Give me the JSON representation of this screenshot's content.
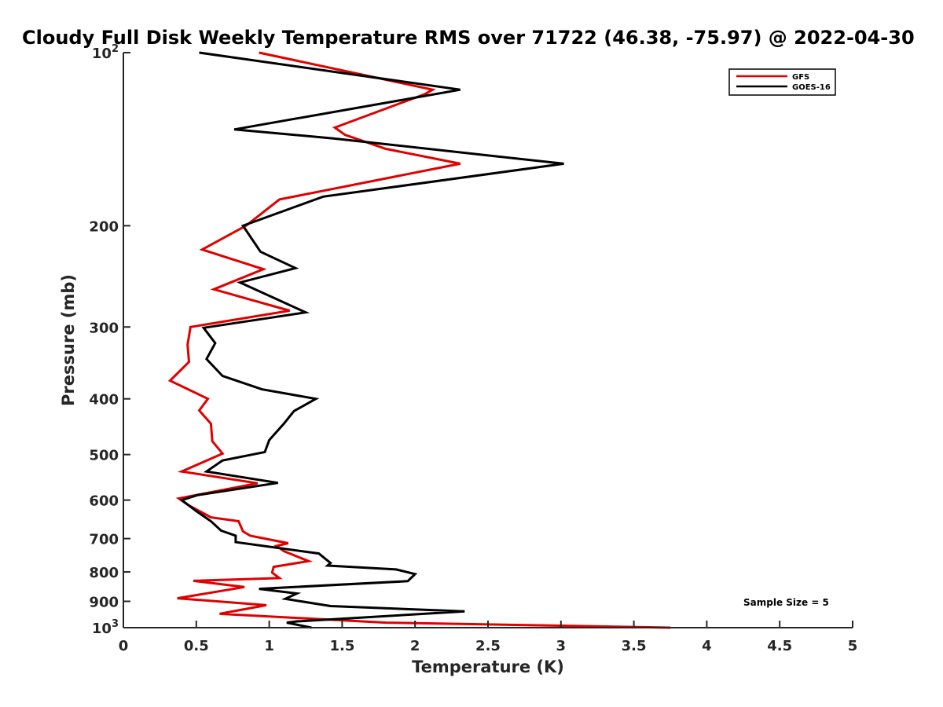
{
  "chart_data": {
    "type": "line",
    "title": "Cloudy Full Disk Weekly Temperature RMS over 71722 (46.38, -75.97) @ 2022-04-30",
    "xlabel": "Temperature (K)",
    "ylabel": "Pressure (mb)",
    "xlim": [
      0,
      5
    ],
    "ylim": [
      100,
      1000
    ],
    "y_scale": "log",
    "y_reversed": true,
    "x_ticks": [
      "0",
      "0.5",
      "1",
      "1.5",
      "2",
      "2.5",
      "3",
      "3.5",
      "4",
      "4.5",
      "5"
    ],
    "y_ticks": [
      {
        "value": 100,
        "base": "10",
        "exp": "2"
      },
      {
        "value": 200,
        "label": "200"
      },
      {
        "value": 300,
        "label": "300"
      },
      {
        "value": 400,
        "label": "400"
      },
      {
        "value": 500,
        "label": "500"
      },
      {
        "value": 600,
        "label": "600"
      },
      {
        "value": 700,
        "label": "700"
      },
      {
        "value": 800,
        "label": "800"
      },
      {
        "value": 900,
        "label": "900"
      },
      {
        "value": 1000,
        "base": "10",
        "exp": "3"
      }
    ],
    "legend": {
      "placement": "top-right"
    },
    "annotation": "Sample Size = 5",
    "series": [
      {
        "name": "GFS",
        "color": "#e00000",
        "points": [
          [
            0.93,
            100
          ],
          [
            2.12,
            116
          ],
          [
            2.07,
            118
          ],
          [
            1.45,
            135
          ],
          [
            1.52,
            139
          ],
          [
            1.8,
            147
          ],
          [
            2.31,
            156
          ],
          [
            1.07,
            180
          ],
          [
            0.84,
            200
          ],
          [
            0.54,
            220
          ],
          [
            0.96,
            238
          ],
          [
            0.62,
            258
          ],
          [
            1.14,
            281
          ],
          [
            0.46,
            300
          ],
          [
            0.44,
            322
          ],
          [
            0.45,
            345
          ],
          [
            0.32,
            372
          ],
          [
            0.58,
            400
          ],
          [
            0.52,
            419
          ],
          [
            0.6,
            442
          ],
          [
            0.61,
            474
          ],
          [
            0.68,
            498
          ],
          [
            0.4,
            535
          ],
          [
            0.92,
            561
          ],
          [
            0.38,
            596
          ],
          [
            0.44,
            611
          ],
          [
            0.6,
            643
          ],
          [
            0.79,
            653
          ],
          [
            0.82,
            680
          ],
          [
            0.87,
            692
          ],
          [
            1.13,
            713
          ],
          [
            1.05,
            721
          ],
          [
            1.1,
            736
          ],
          [
            1.27,
            766
          ],
          [
            1.03,
            784
          ],
          [
            1.02,
            802
          ],
          [
            1.07,
            820
          ],
          [
            0.48,
            829
          ],
          [
            0.83,
            850
          ],
          [
            0.37,
            889
          ],
          [
            0.98,
            914
          ],
          [
            0.66,
            946
          ],
          [
            1.8,
            980
          ],
          [
            3.75,
            1000
          ]
        ]
      },
      {
        "name": "GOES-16",
        "color": "#000000",
        "points": [
          [
            0.52,
            100
          ],
          [
            2.31,
            116
          ],
          [
            0.76,
            136
          ],
          [
            1.44,
            141
          ],
          [
            3.02,
            156
          ],
          [
            1.37,
            178
          ],
          [
            0.82,
            200
          ],
          [
            0.94,
            222
          ],
          [
            1.18,
            237
          ],
          [
            0.8,
            251
          ],
          [
            1.25,
            283
          ],
          [
            0.55,
            301
          ],
          [
            0.63,
            320
          ],
          [
            0.57,
            341
          ],
          [
            0.68,
            365
          ],
          [
            0.95,
            385
          ],
          [
            1.32,
            400
          ],
          [
            1.17,
            420
          ],
          [
            1.1,
            442
          ],
          [
            1.0,
            472
          ],
          [
            0.97,
            495
          ],
          [
            0.68,
            512
          ],
          [
            0.57,
            535
          ],
          [
            1.06,
            560
          ],
          [
            0.51,
            588
          ],
          [
            0.4,
            600
          ],
          [
            0.5,
            627
          ],
          [
            0.6,
            653
          ],
          [
            0.67,
            678
          ],
          [
            0.77,
            692
          ],
          [
            0.77,
            710
          ],
          [
            1.34,
            743
          ],
          [
            1.42,
            772
          ],
          [
            1.4,
            780
          ],
          [
            1.87,
            792
          ],
          [
            2.0,
            807
          ],
          [
            1.95,
            830
          ],
          [
            0.93,
            856
          ],
          [
            1.19,
            872
          ],
          [
            1.11,
            891
          ],
          [
            1.42,
            917
          ],
          [
            2.34,
            937
          ],
          [
            1.19,
            975
          ],
          [
            1.12,
            980
          ],
          [
            1.29,
            1000
          ]
        ]
      }
    ]
  }
}
